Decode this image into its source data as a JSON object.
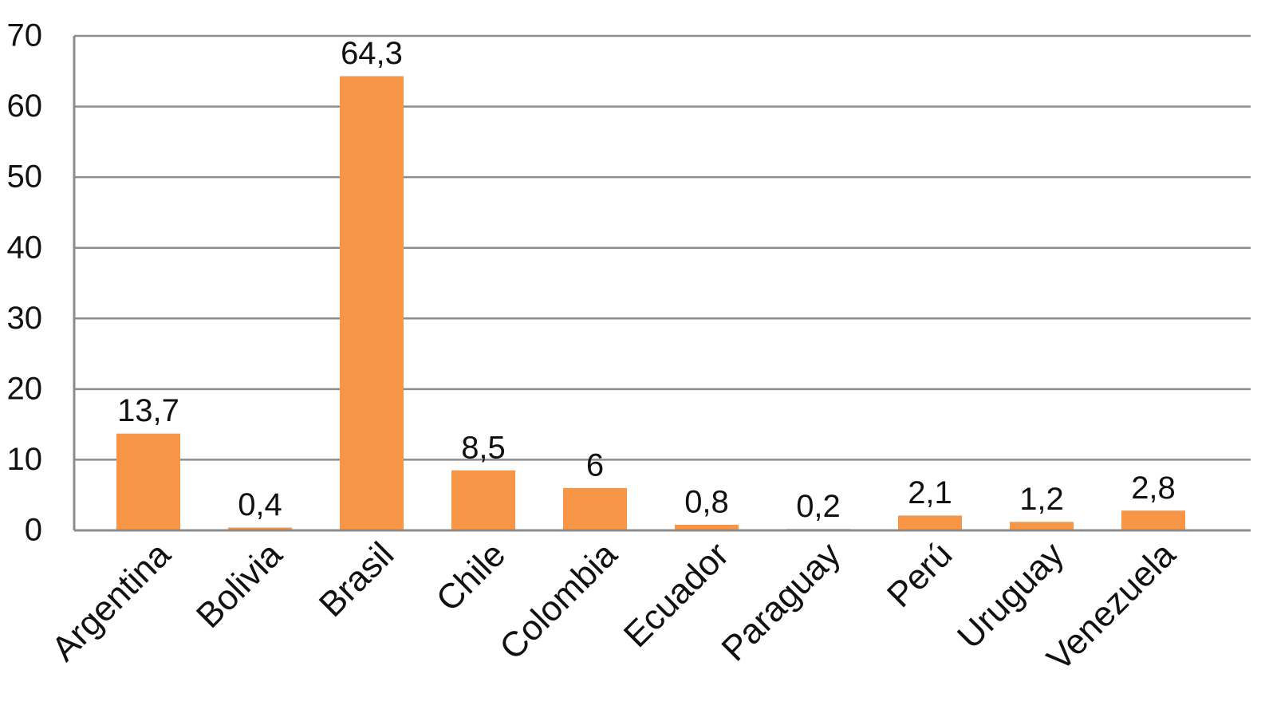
{
  "chart_data": {
    "type": "bar",
    "categories": [
      "Argentina",
      "Bolivia",
      "Brasil",
      "Chile",
      "Colombia",
      "Ecuador",
      "Paraguay",
      "Perú",
      "Uruguay",
      "Venezuela"
    ],
    "values": [
      13.7,
      0.4,
      64.3,
      8.5,
      6,
      0.8,
      0.2,
      2.1,
      1.2,
      2.8
    ],
    "value_labels": [
      "13,7",
      "0,4",
      "64,3",
      "8,5",
      "6",
      "0,8",
      "0,2",
      "2,1",
      "1,2",
      "2,8"
    ],
    "color": "#f79646",
    "ylim": [
      0,
      70
    ],
    "yticks": [
      0,
      10,
      20,
      30,
      40,
      50,
      60,
      70
    ],
    "grid": true
  }
}
